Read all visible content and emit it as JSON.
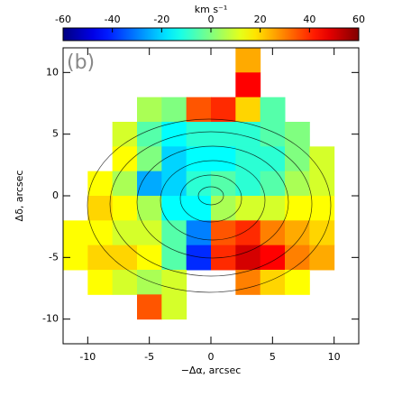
{
  "chart_data": {
    "type": "heatmap",
    "panel_label": "(b)",
    "colorbar_label": "km s⁻¹",
    "xlabel": "−Δα, arcsec",
    "ylabel": "Δδ, arcsec",
    "colormap": "jet",
    "clim": [
      -60,
      60
    ],
    "cticks": [
      -60,
      -40,
      -20,
      0,
      20,
      40,
      60
    ],
    "xlim": [
      -12,
      12
    ],
    "ylim": [
      -12,
      12
    ],
    "xticks": [
      -10,
      -5,
      0,
      5,
      10
    ],
    "yticks": [
      -10,
      -5,
      0,
      5,
      10
    ],
    "x": [
      -11,
      -9,
      -7,
      -5,
      -3,
      -1,
      1,
      3,
      5,
      7,
      9,
      11
    ],
    "y": [
      11,
      9,
      7,
      5,
      3,
      1,
      -1,
      -3,
      -5,
      -7,
      -9,
      -11
    ],
    "values": [
      [
        null,
        null,
        null,
        null,
        null,
        null,
        null,
        25,
        null,
        null,
        null,
        null
      ],
      [
        null,
        null,
        null,
        null,
        null,
        null,
        null,
        45,
        null,
        null,
        null,
        null
      ],
      [
        null,
        null,
        null,
        5,
        0,
        35,
        40,
        20,
        -5,
        null,
        null,
        null
      ],
      [
        null,
        null,
        10,
        -5,
        -15,
        -10,
        -10,
        -10,
        -5,
        0,
        null,
        null
      ],
      [
        null,
        null,
        15,
        0,
        -20,
        -15,
        -15,
        -10,
        -10,
        0,
        10,
        null
      ],
      [
        null,
        15,
        5,
        -25,
        -20,
        -10,
        -5,
        -10,
        -5,
        5,
        10,
        null
      ],
      [
        null,
        20,
        15,
        5,
        -15,
        -15,
        5,
        10,
        10,
        15,
        15,
        null
      ],
      [
        15,
        15,
        10,
        10,
        -5,
        -30,
        35,
        40,
        30,
        25,
        20,
        null
      ],
      [
        15,
        20,
        20,
        15,
        -5,
        -40,
        40,
        50,
        45,
        30,
        25,
        null
      ],
      [
        null,
        15,
        10,
        5,
        10,
        null,
        null,
        30,
        20,
        15,
        null,
        null
      ],
      [
        null,
        null,
        null,
        35,
        10,
        null,
        null,
        null,
        null,
        null,
        null,
        null
      ],
      [
        null,
        null,
        null,
        null,
        null,
        null,
        null,
        null,
        null,
        null,
        null,
        null
      ]
    ]
  }
}
